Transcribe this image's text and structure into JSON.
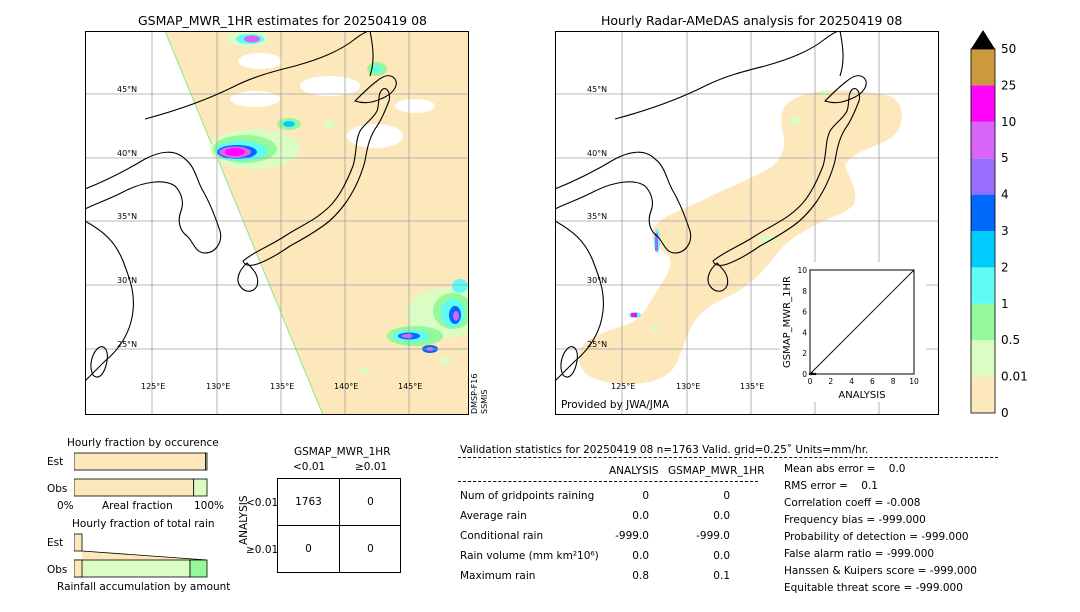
{
  "map_left": {
    "title": "GSMAP_MWR_1HR estimates for 20250419 08",
    "lat_labels": [
      "45°N",
      "40°N",
      "35°N",
      "30°N",
      "25°N"
    ],
    "lon_labels": [
      "125°E",
      "130°E",
      "135°E",
      "140°E",
      "145°E"
    ],
    "satellite_note_1": "DMSP-F16",
    "satellite_note_2": "SSMIS"
  },
  "map_right": {
    "title": "Hourly Radar-AMeDAS analysis for 20250419 08",
    "lat_labels": [
      "45°N",
      "40°N",
      "35°N",
      "30°N",
      "25°N"
    ],
    "lon_labels": [
      "125°E",
      "130°E",
      "135°E"
    ],
    "provider": "Provided by JWA/JMA"
  },
  "colorbar": {
    "levels": [
      "0",
      "0.01",
      "0.5",
      "1",
      "2",
      "3",
      "4",
      "5",
      "10",
      "25",
      "50"
    ],
    "colors": [
      "#fde8bb",
      "#dbfcc3",
      "#93f99a",
      "#5efcf4",
      "#00cdfd",
      "#0068fb",
      "#9a6cff",
      "#d865f8",
      "#ff03fb",
      "#cc9a3c"
    ],
    "over_color": "#000000"
  },
  "inset": {
    "ylabel": "GSMAP_MWR_1HR",
    "xlabel": "ANALYSIS",
    "ticks": [
      "0",
      "2",
      "4",
      "6",
      "8",
      "10"
    ],
    "top_tick": "10"
  },
  "fraction_occurrence": {
    "title": "Hourly fraction by occurence",
    "row_est": "Est",
    "row_obs": "Obs",
    "axis_left": "0%",
    "axis_mid": "Areal fraction",
    "axis_right": "100%"
  },
  "fraction_total": {
    "title": "Hourly fraction of total rain",
    "row_est": "Est",
    "row_obs": "Obs",
    "axis_label": "Rainfall accumulation by amount"
  },
  "contingency": {
    "title": "GSMAP_MWR_1HR",
    "col_lt": "<0.01",
    "col_ge": "≥0.01",
    "row_axis": "ANALYSIS",
    "row_lt": "<0.01",
    "row_ge": "≥0.01",
    "cells": [
      "1763",
      "0",
      "0",
      "0"
    ]
  },
  "validation": {
    "header": "Validation statistics for 20250419 08  n=1763 Valid. grid=0.25˚ Units=mm/hr.",
    "col_analysis": "ANALYSIS",
    "col_gsmap": "GSMAP_MWR_1HR",
    "rows": [
      {
        "label": "Num of gridpoints raining",
        "analysis": "0",
        "gsmap": "0"
      },
      {
        "label": "Average rain",
        "analysis": "0.0",
        "gsmap": "0.0"
      },
      {
        "label": "Conditional rain",
        "analysis": "-999.0",
        "gsmap": "-999.0"
      },
      {
        "label": "Rain volume (mm km²10⁶)",
        "analysis": "0.0",
        "gsmap": "0.0"
      },
      {
        "label": "Maximum rain",
        "analysis": "0.8",
        "gsmap": "0.1"
      }
    ],
    "scores": [
      "Mean abs error =    0.0",
      "RMS error =    0.1",
      "Correlation coeff = -0.008",
      "Frequency bias = -999.000",
      "Probability of detection = -999.000",
      "False alarm ratio = -999.000",
      "Hanssen & Kuipers score = -999.000",
      "Equitable threat score = -999.000"
    ]
  },
  "chart_data": [
    {
      "type": "table",
      "title": "GSMAP_MWR_1HR",
      "columns": [
        "<0.01",
        "≥0.01"
      ],
      "rows": [
        "<0.01",
        "≥0.01"
      ],
      "values": [
        [
          1763,
          0
        ],
        [
          0,
          0
        ]
      ]
    },
    {
      "type": "bar",
      "title": "Hourly fraction by occurence",
      "categories": [
        "Est",
        "Obs"
      ],
      "series": [
        {
          "values": [
            0.99,
            0.9
          ]
        },
        {
          "values": [
            0.01,
            0.1
          ]
        }
      ],
      "xlabel": "Areal fraction",
      "xlim": [
        0,
        1
      ]
    },
    {
      "type": "bar",
      "title": "Hourly fraction of total rain",
      "categories": [
        "Est",
        "Obs"
      ],
      "xlabel": "Rainfall accumulation by amount"
    },
    {
      "type": "scatter",
      "xlabel": "ANALYSIS",
      "ylabel": "GSMAP_MWR_1HR",
      "xlim": [
        0,
        10
      ],
      "ylim": [
        0,
        10
      ],
      "x": [
        0,
        0.1,
        0.2,
        0.3,
        0.5
      ],
      "y": [
        0,
        0,
        0.05,
        0,
        0
      ]
    }
  ]
}
